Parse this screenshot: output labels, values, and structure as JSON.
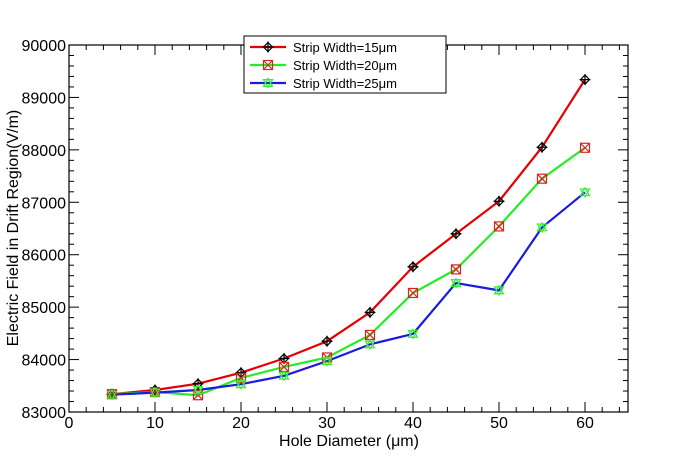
{
  "chart_data": {
    "type": "line",
    "title": "",
    "xlabel": "Hole Diameter (μm)",
    "ylabel": "Electric Field in Drift Region(V/m)",
    "xlim": [
      0,
      65
    ],
    "ylim": [
      83000,
      90000
    ],
    "xticks": [
      0,
      10,
      20,
      30,
      40,
      50,
      60
    ],
    "yticks": [
      83000,
      84000,
      85000,
      86000,
      87000,
      88000,
      89000,
      90000
    ],
    "grid": false,
    "legend_position": "top-center",
    "x": [
      5,
      10,
      15,
      20,
      25,
      30,
      35,
      40,
      45,
      50,
      55,
      60
    ],
    "series": [
      {
        "name": "Strip Width=15μm",
        "color": "#e60000",
        "marker": "diamond-cross",
        "marker_color": "#000000",
        "values": [
          83340,
          83420,
          83540,
          83750,
          84020,
          84350,
          84900,
          85770,
          86400,
          87020,
          88050,
          89340
        ]
      },
      {
        "name": "Strip Width=20μm",
        "color": "#22ee22",
        "marker": "square-x",
        "marker_color": "#dd2222",
        "values": [
          83340,
          83380,
          83320,
          83650,
          83860,
          84040,
          84470,
          85270,
          85720,
          86540,
          87450,
          88040
        ]
      },
      {
        "name": "Strip Width=25μm",
        "color": "#1a1ae0",
        "marker": "star-triangle",
        "marker_color": "#33ee33",
        "values": [
          83330,
          83370,
          83420,
          83530,
          83690,
          83970,
          84290,
          84490,
          85460,
          85320,
          86520,
          87190
        ]
      }
    ]
  }
}
